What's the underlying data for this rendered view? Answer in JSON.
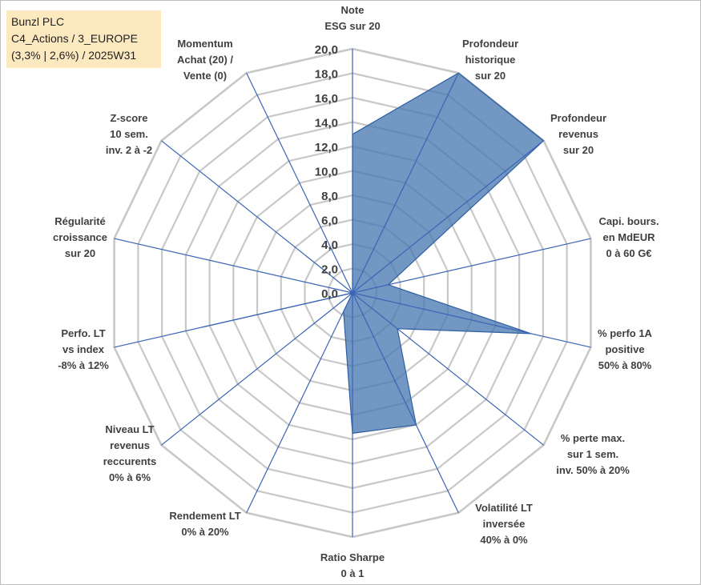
{
  "title_box": {
    "line1": "Bunzl PLC",
    "line2": "C4_Actions / 3_EUROPE",
    "line3": "(3,3% | 2,6%) / 2025W31"
  },
  "colors": {
    "fill": "#4a7ab1",
    "stroke": "#2f5fa3",
    "grid": "#c8c8c8",
    "spokes": "#3a64b6",
    "title_bg": "#fde9bf"
  },
  "chart_data": {
    "type": "radar",
    "range": [
      0,
      20
    ],
    "tick_step": 2,
    "tick_labels": [
      "0,0",
      "2,0",
      "4,0",
      "6,0",
      "8,0",
      "10,0",
      "12,0",
      "14,0",
      "16,0",
      "18,0",
      "20,0"
    ],
    "grid": true,
    "axes": [
      [
        "Note",
        "ESG sur 20"
      ],
      [
        "Profondeur",
        "historique",
        "sur 20"
      ],
      [
        "Profondeur",
        "revenus",
        "sur 20"
      ],
      [
        "Capi. bours.",
        "en MdEUR",
        "0 à 60 G€"
      ],
      [
        "% perfo 1A",
        "positive",
        "50% à 80%"
      ],
      [
        "% perte max.",
        "sur 1 sem.",
        "inv. 50% à 20%"
      ],
      [
        "Volatilité LT",
        "inversée",
        "40% à 0%"
      ],
      [
        "Ratio Sharpe",
        "0 à 1"
      ],
      [
        "Rendement LT",
        "0% à 20%"
      ],
      [
        "Niveau LT",
        "revenus",
        "reccurents",
        "0% à 6%"
      ],
      [
        "Perfo. LT",
        "vs index",
        "-8% à 12%"
      ],
      [
        "Régularité",
        "croissance",
        "sur 20"
      ],
      [
        "Z-score",
        "10 sem.",
        "inv. 2 à -2"
      ],
      [
        "Momentum",
        "Achat (20) /",
        "Vente (0)"
      ]
    ],
    "values": [
      13.0,
      20.0,
      20.0,
      3.0,
      15.0,
      4.7,
      12.0,
      11.5,
      1.7,
      0.0,
      12.7,
      0.0,
      0.3,
      0.0
    ]
  }
}
